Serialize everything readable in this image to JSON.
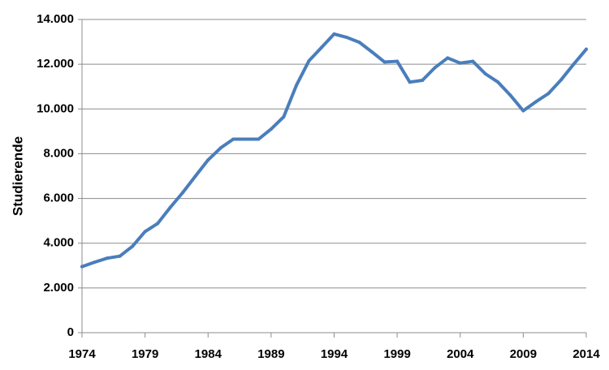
{
  "chart_data": {
    "type": "line",
    "title": "",
    "xlabel": "",
    "ylabel": "Studierende",
    "xlim": [
      1974,
      2014
    ],
    "ylim": [
      0,
      14000
    ],
    "x_ticks": [
      1974,
      1979,
      1984,
      1989,
      1994,
      1999,
      2004,
      2009,
      2014
    ],
    "x_tick_labels": [
      "1974",
      "1979",
      "1984",
      "1989",
      "1994",
      "1999",
      "2004",
      "2009",
      "2014"
    ],
    "y_ticks": [
      0,
      2000,
      4000,
      6000,
      8000,
      10000,
      12000,
      14000
    ],
    "y_tick_labels": [
      "0",
      "2.000",
      "4.000",
      "6.000",
      "8.000",
      "10.000",
      "12.000",
      "14.000"
    ],
    "grid": true,
    "legend": "none",
    "series_color": "#4a7ebb",
    "series": [
      {
        "x": [
          1974,
          1975,
          1976,
          1977,
          1978,
          1979,
          1980,
          1981,
          1982,
          1983,
          1984,
          1985,
          1986,
          1987,
          1988,
          1989,
          1990,
          1991,
          1992,
          1993,
          1994,
          1995,
          1996,
          1997,
          1998,
          1999,
          2000,
          2001,
          2002,
          2003,
          2004,
          2005,
          2006,
          2007,
          2008,
          2009,
          2010,
          2011,
          2012,
          2013,
          2014
        ],
        "values": [
          2950,
          3150,
          3330,
          3420,
          3860,
          4520,
          4880,
          5600,
          6270,
          7000,
          7720,
          8260,
          8650,
          8650,
          8650,
          9100,
          9650,
          11050,
          12150,
          12750,
          13350,
          13200,
          12980,
          12550,
          12100,
          12130,
          11200,
          11280,
          11850,
          12280,
          12050,
          12130,
          11570,
          11200,
          10600,
          9920,
          10320,
          10690,
          11300,
          12000,
          12670
        ]
      }
    ]
  }
}
